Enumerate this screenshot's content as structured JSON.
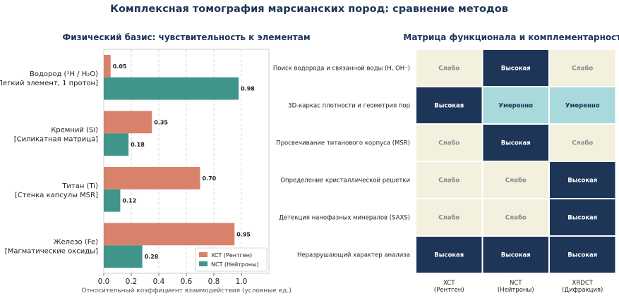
{
  "figure": {
    "title": "Комплексная томография марсианских пород: сравнение методов"
  },
  "chart_data": [
    {
      "type": "bar",
      "orientation": "horizontal",
      "title": "Физический базис: чувствительность к элементам",
      "xlabel": "Относительный коэффициент взаимодействия (условные ед.)",
      "ylabel": "",
      "xlim": [
        0,
        1.2
      ],
      "xticks": [
        "0.0",
        "0.2",
        "0.4",
        "0.6",
        "0.8",
        "1.0"
      ],
      "grid": "vertical dashed",
      "legend_position": "bottom-right",
      "categories": [
        [
          "Водород (¹H / H₂O)",
          "[Легкий элемент, 1 протон]"
        ],
        [
          "Кремний (Si)",
          "[Силикатная матрица]"
        ],
        [
          "Титан (Ti)",
          "[Стенка капсулы MSR]"
        ],
        [
          "Железо (Fe)",
          "[Магматические оксиды]"
        ]
      ],
      "series": [
        {
          "name": "XCT (Рентген)",
          "color": "#d9826b",
          "values": [
            0.05,
            0.35,
            0.7,
            0.95
          ],
          "labels": [
            "0.05",
            "0.35",
            "0.70",
            "0.95"
          ]
        },
        {
          "name": "NCT (Нейтроны)",
          "color": "#3f9589",
          "values": [
            0.98,
            0.18,
            0.12,
            0.28
          ],
          "labels": [
            "0.98",
            "0.18",
            "0.12",
            "0.28"
          ]
        }
      ]
    },
    {
      "type": "heatmap",
      "title": "Матрица функционала и комплементарности",
      "rows": [
        "Поиск водорода и связанной воды (H, OH⁻)",
        "3D-каркас плотности и геометрия пор",
        "Просвечивание титанового корпуса (MSR)",
        "Определение кристаллической решетки",
        "Детекция нанофазных минералов (SAXS)",
        "Неразрушающий характер анализа"
      ],
      "columns": [
        [
          "XCT",
          "(Рентген)"
        ],
        [
          "NCT",
          "(Нейтроны)"
        ],
        [
          "XRDCT",
          "(Дифракция)"
        ]
      ],
      "values": [
        [
          "Слабо",
          "Высокая",
          "Слабо"
        ],
        [
          "Высокая",
          "Умеренно",
          "Умеренно"
        ],
        [
          "Слабо",
          "Высокая",
          "Слабо"
        ],
        [
          "Слабо",
          "Слабо",
          "Высокая"
        ],
        [
          "Слабо",
          "Слабо",
          "Высокая"
        ],
        [
          "Высокая",
          "Высокая",
          "Высокая"
        ]
      ],
      "level_colors": {
        "Слабо": {
          "fill": "#f3f0de",
          "text": "#8a8a8a"
        },
        "Умеренно": {
          "fill": "#a8dadc",
          "text": "#1d3557"
        },
        "Высокая": {
          "fill": "#1d3557",
          "text": "#ffffff"
        }
      }
    }
  ]
}
